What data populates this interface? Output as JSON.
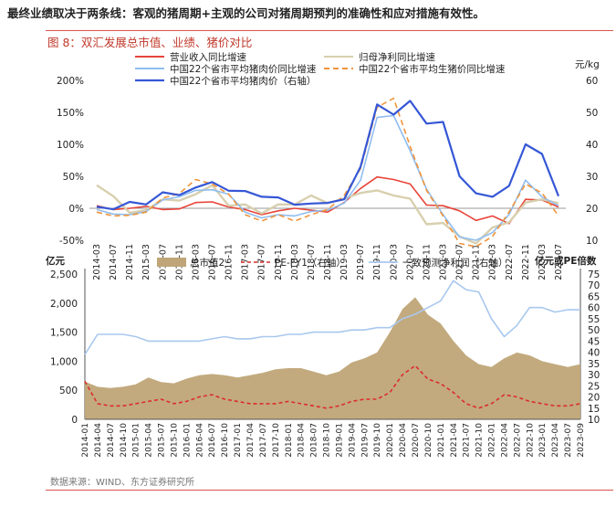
{
  "headline": "最终业绩取决于两条线：客观的猪周期+主观的公司对猪周期预判的准确性和应对措施有效性。",
  "figure_title": "图 8：双汇发展总市值、业绩、猪价对比",
  "source": "数据来源：WIND、东方证券研究所",
  "colors": {
    "revenue": "#e8443a",
    "netprofit": "#d8cfae",
    "pork_yoy": "#8fbdf0",
    "hog_yoy": "#f0943c",
    "pork_price": "#3557d6",
    "mktcap": "#bfa577",
    "pe": "#dc2c2c",
    "consensus": "#a9c8ee"
  },
  "chart_data": [
    {
      "type": "line",
      "legend": [
        "营业收入同比增速",
        "归母净利同比增速",
        "中国22个省市平均猪肉价同比增速",
        "中国22个省市平均生猪价同比增速",
        "中国22个省市平均猪肉价（右轴）"
      ],
      "y_unit_right": "元/kg",
      "y_ticks_left": [
        "-50%",
        "0%",
        "50%",
        "100%",
        "150%",
        "200%"
      ],
      "y_ticks_right": [
        "10",
        "20",
        "30",
        "40",
        "50",
        "60"
      ],
      "ylim_left": [
        -50,
        200
      ],
      "ylim_right": [
        10,
        60
      ],
      "x_labels": [
        "2014-03",
        "2014-07",
        "2014-11",
        "2015-03",
        "2015-07",
        "2015-11",
        "2016-03",
        "2016-07",
        "2016-11",
        "2017-03",
        "2017-07",
        "2017-11",
        "2018-03",
        "2018-07",
        "2018-11",
        "2019-03",
        "2019-07",
        "2019-11",
        "2020-03",
        "2020-07",
        "2020-11",
        "2021-03",
        "2021-07",
        "2021-11",
        "2022-03",
        "2022-07",
        "2022-11",
        "2023-03",
        "2023-07"
      ],
      "series": [
        {
          "name": "营业收入同比增速",
          "key": "revenue",
          "dash": "",
          "axis": "left",
          "values": [
            4,
            -2,
            0,
            3,
            -2,
            -1,
            9,
            10,
            2,
            -2,
            -10,
            -4,
            0,
            -3,
            -6,
            9,
            31,
            49,
            45,
            38,
            5,
            4,
            -4,
            -19,
            -12,
            -24,
            14,
            13,
            2
          ]
        },
        {
          "name": "归母净利同比增速",
          "key": "netprofit",
          "dash": "",
          "axis": "left",
          "values": [
            36,
            19,
            -7,
            -3,
            14,
            12,
            22,
            36,
            4,
            6,
            -8,
            6,
            6,
            20,
            8,
            15,
            24,
            28,
            20,
            15,
            -25,
            -23,
            -44,
            -55,
            -30,
            -22,
            9,
            14,
            8
          ]
        },
        {
          "name": "中国22个省市平均猪肉价同比增速",
          "key": "pork_yoy",
          "dash": "",
          "axis": "left",
          "values": [
            -2,
            -9,
            -10,
            -5,
            13,
            18,
            28,
            29,
            22,
            -6,
            -15,
            -10,
            -12,
            -5,
            -3,
            8,
            44,
            142,
            145,
            90,
            30,
            -10,
            -45,
            -50,
            -38,
            -10,
            44,
            18,
            4
          ]
        },
        {
          "name": "中国22个省市平均生猪价同比增速",
          "key": "hog_yoy",
          "dash": "6,4",
          "axis": "left",
          "values": [
            -6,
            -12,
            -11,
            -6,
            16,
            23,
            45,
            38,
            22,
            -10,
            -20,
            -10,
            -20,
            -10,
            -2,
            20,
            62,
            158,
            172,
            97,
            28,
            -12,
            -55,
            -60,
            -44,
            -6,
            38,
            24,
            -12
          ]
        },
        {
          "name": "中国22个省市平均猪肉价（右轴）",
          "key": "pork_price",
          "dash": "",
          "axis": "right",
          "values": [
            20.5,
            19.7,
            22.0,
            21.2,
            25.0,
            24.1,
            26.5,
            28.2,
            25.5,
            25.4,
            23.6,
            23.4,
            21.1,
            21.5,
            21.7,
            22.8,
            33.0,
            52.5,
            49.3,
            53.6,
            46.5,
            47.0,
            30.0,
            24.7,
            23.6,
            27.0,
            40.0,
            37.0,
            23.8
          ]
        }
      ]
    },
    {
      "type": "area",
      "legend": [
        "总市值2",
        "PE-FY1（右轴）",
        "一致预测净利润（右轴）"
      ],
      "y_unit_left": "亿元",
      "y_unit_right": "亿元或PE倍数",
      "y_ticks_left": [
        "0",
        "500",
        "1,000",
        "1,500",
        "2,000",
        "2,500"
      ],
      "y_ticks_right": [
        "10",
        "15",
        "20",
        "25",
        "30",
        "35",
        "40",
        "45",
        "50",
        "55",
        "60",
        "65",
        "70",
        "75"
      ],
      "ylim_left": [
        0,
        2500
      ],
      "ylim_right": [
        10,
        75
      ],
      "x_labels": [
        "2014-01",
        "2014-04",
        "2014-07",
        "2014-10",
        "2015-01",
        "2015-04",
        "2015-07",
        "2015-10",
        "2016-01",
        "2016-04",
        "2016-07",
        "2016-10",
        "2017-01",
        "2017-04",
        "2017-07",
        "2017-10",
        "2018-01",
        "2018-04",
        "2018-07",
        "2018-10",
        "2019-01",
        "2019-04",
        "2019-07",
        "2019-10",
        "2020-01",
        "2020-04",
        "2020-07",
        "2020-10",
        "2021-01",
        "2021-04",
        "2021-07",
        "2021-10",
        "2022-01",
        "2022-04",
        "2022-07",
        "2022-10",
        "2023-01",
        "2023-04",
        "2023-07",
        "2023-09"
      ],
      "series": [
        {
          "name": "总市值2",
          "key": "mktcap",
          "axis": "left",
          "values": [
            650,
            560,
            540,
            560,
            600,
            720,
            640,
            620,
            700,
            760,
            780,
            760,
            720,
            760,
            800,
            860,
            880,
            880,
            820,
            760,
            820,
            980,
            1050,
            1150,
            1500,
            1900,
            2100,
            1800,
            1650,
            1350,
            1100,
            950,
            900,
            1050,
            1150,
            1100,
            1000,
            950,
            900,
            950
          ]
        },
        {
          "name": "PE-FY1（右轴）",
          "key": "pe",
          "dash": "4,3",
          "axis": "right",
          "values": [
            27,
            17,
            16,
            16,
            17,
            18,
            19,
            17,
            18,
            20,
            21,
            19,
            18,
            17,
            17,
            17,
            18,
            17,
            16,
            15,
            16,
            18,
            19,
            19,
            22,
            30,
            34,
            28,
            26,
            22,
            17,
            15,
            17,
            21,
            20,
            18,
            17,
            16,
            16,
            17
          ]
        },
        {
          "name": "一致预测净利润（右轴）",
          "key": "consensus",
          "dash": "",
          "axis": "right",
          "values": [
            39,
            48,
            48,
            48,
            47,
            45,
            45,
            45,
            45,
            45,
            46,
            47,
            46,
            46,
            47,
            47,
            48,
            48,
            49,
            49,
            49,
            50,
            50,
            51,
            51,
            55,
            57,
            60,
            63,
            72,
            68,
            67,
            55,
            47,
            52,
            60,
            60,
            58,
            59,
            59
          ]
        }
      ]
    }
  ]
}
